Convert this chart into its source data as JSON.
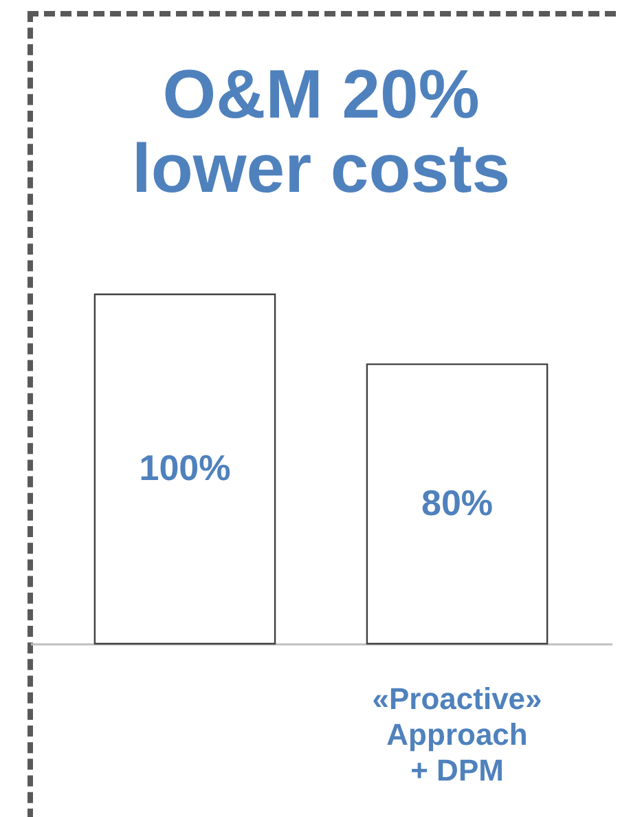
{
  "chart_data": {
    "type": "bar",
    "title": "O&M 20%\nlower costs",
    "categories": [
      null,
      "«Proactive»\nApproach\n+ DPM"
    ],
    "values": [
      100,
      80
    ],
    "value_labels": [
      "100%",
      "80%"
    ],
    "color": "#ffffff",
    "grid": false
  }
}
